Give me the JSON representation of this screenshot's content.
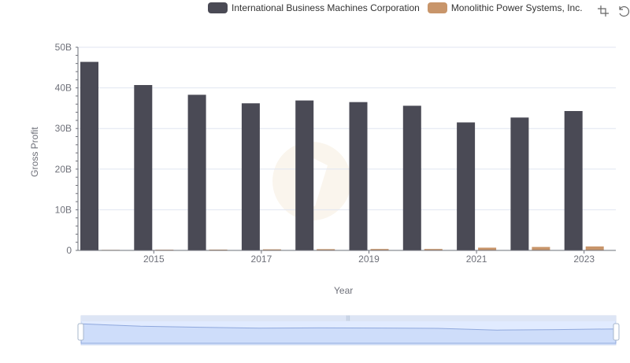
{
  "legend": {
    "items": [
      {
        "label": "International Business Machines Corporation",
        "color": "#4a4a55"
      },
      {
        "label": "Monolithic Power Systems, Inc.",
        "color": "#c8956a"
      }
    ]
  },
  "toolbox": {
    "icons": [
      "zoom-icon",
      "restore-icon"
    ]
  },
  "chart_data": {
    "type": "bar",
    "xlabel": "Year",
    "ylabel": "Gross Profit",
    "categories": [
      "2014",
      "2015",
      "2016",
      "2017",
      "2018",
      "2019",
      "2020",
      "2021",
      "2022",
      "2023"
    ],
    "x_tick_labels": [
      "2015",
      "2017",
      "2019",
      "2021",
      "2023"
    ],
    "y_ticks": [
      0,
      10,
      20,
      30,
      40,
      50
    ],
    "y_tick_labels": [
      "0",
      "10B",
      "20B",
      "30B",
      "40B",
      "50B"
    ],
    "ylim": [
      0,
      50
    ],
    "unit": "B",
    "grid": true,
    "legend_position": "top-right",
    "series": [
      {
        "name": "International Business Machines Corporation",
        "color": "#4a4a55",
        "values": [
          46.4,
          40.7,
          38.3,
          36.2,
          36.9,
          36.5,
          35.6,
          31.5,
          32.7,
          34.3
        ]
      },
      {
        "name": "Monolithic Power Systems, Inc.",
        "color": "#c8956a",
        "values": [
          0.13,
          0.17,
          0.2,
          0.26,
          0.31,
          0.35,
          0.35,
          0.68,
          0.85,
          0.97
        ]
      }
    ]
  }
}
